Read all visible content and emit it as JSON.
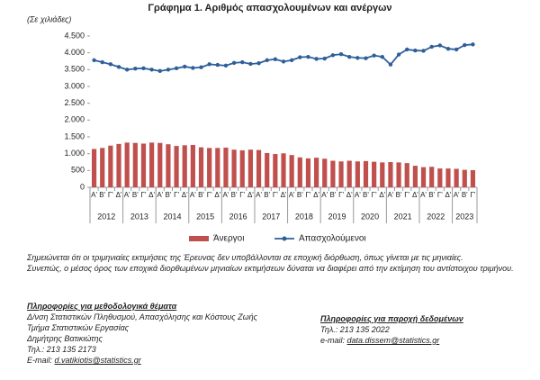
{
  "chart_data": {
    "type": "bar-line",
    "title": "Γράφημα 1. Αριθμός απασχολουμένων και ανέργων",
    "y_label": "(Σε χιλιάδες)",
    "categories": [
      "Α'",
      "Β'",
      "Γ'",
      "Δ'",
      "Α'",
      "Β'",
      "Γ'",
      "Δ'",
      "Α'",
      "Β'",
      "Γ'",
      "Δ'",
      "Α'",
      "Β'",
      "Γ'",
      "Δ'",
      "Α'",
      "Β'",
      "Γ'",
      "Δ'",
      "Α'",
      "Β'",
      "Γ'",
      "Δ'",
      "Α'",
      "Β'",
      "Γ'",
      "Δ'",
      "Α'",
      "Β'",
      "Γ'",
      "Δ'",
      "Α'",
      "Β'",
      "Γ'",
      "Δ'",
      "Α'",
      "Β'",
      "Γ'",
      "Δ'",
      "Α'",
      "Β'",
      "Γ'",
      "Δ'",
      "Α'",
      "Β'",
      "Γ'"
    ],
    "years": [
      "2012",
      "2013",
      "2014",
      "2015",
      "2016",
      "2017",
      "2018",
      "2019",
      "2020",
      "2021",
      "2022",
      "2023"
    ],
    "series": [
      {
        "name": "Άνεργοι",
        "color": "#c0504d",
        "kind": "bar",
        "values": [
          1140,
          1170,
          1240,
          1290,
          1330,
          1320,
          1300,
          1330,
          1320,
          1280,
          1230,
          1250,
          1260,
          1190,
          1170,
          1170,
          1180,
          1120,
          1100,
          1120,
          1110,
          1020,
          990,
          1010,
          960,
          890,
          860,
          880,
          850,
          790,
          770,
          790,
          770,
          780,
          760,
          740,
          750,
          740,
          720,
          640,
          600,
          610,
          560,
          560,
          550,
          520,
          510
        ]
      },
      {
        "name": "Απασχολούμενοι",
        "color": "#2e5f9a",
        "kind": "line",
        "values": [
          3780,
          3720,
          3660,
          3580,
          3500,
          3530,
          3540,
          3500,
          3460,
          3500,
          3540,
          3590,
          3550,
          3570,
          3660,
          3640,
          3620,
          3700,
          3720,
          3670,
          3690,
          3780,
          3810,
          3740,
          3780,
          3870,
          3880,
          3820,
          3830,
          3930,
          3960,
          3880,
          3850,
          3840,
          3920,
          3880,
          3650,
          3950,
          4100,
          4070,
          4060,
          4180,
          4220,
          4120,
          4100,
          4230,
          4250
        ]
      }
    ],
    "ylim": [
      0,
      4500
    ],
    "yticks": [
      0,
      500,
      {
        "value": 1000,
        "label": "1.000"
      },
      {
        "value": 1500,
        "label": "1.500"
      },
      {
        "value": 2000,
        "label": "2.000"
      },
      {
        "value": 2500,
        "label": "2.500"
      },
      {
        "value": 3000,
        "label": "3.000"
      },
      {
        "value": 3500,
        "label": "3.500"
      },
      {
        "value": 4000,
        "label": "4.000"
      },
      {
        "value": 4500,
        "label": "4.500"
      }
    ],
    "grid": false
  },
  "notes": [
    "Σημειώνεται ότι οι τριμηνιαίες εκτιμήσεις της Έρευνας δεν υποβάλλονται σε εποχική διόρθωση, όπως γίνεται με τις μηνιαίες.",
    "Συνεπώς, ο μέσος όρος των εποχικά διορθωμένων μηνιαίων εκτιμήσεων δύναται να διαφέρει από την εκτίμηση του αντίστοιχου τριμήνου."
  ],
  "contacts": {
    "methodology": {
      "heading": "Πληροφορίες για μεθοδολογικά θέματα",
      "lines": [
        "Δ/νση Στατιστικών Πληθυσμού, Απασχόλησης και Κόστους Ζωής",
        "Τμήμα Στατιστικών Εργασίας",
        "Δημήτρης Βατικιώτης",
        "Τηλ.: 213 135 2173"
      ],
      "email_label": "E-mail:",
      "email": "d.vatikiotis@statistics.gr"
    },
    "data": {
      "heading": "Πληροφορίες για παροχή δεδομένων",
      "lines": [
        "Τηλ.: 213 135 2022"
      ],
      "email_label": "e-mail:",
      "email": "data.dissem@statistics.gr"
    }
  }
}
